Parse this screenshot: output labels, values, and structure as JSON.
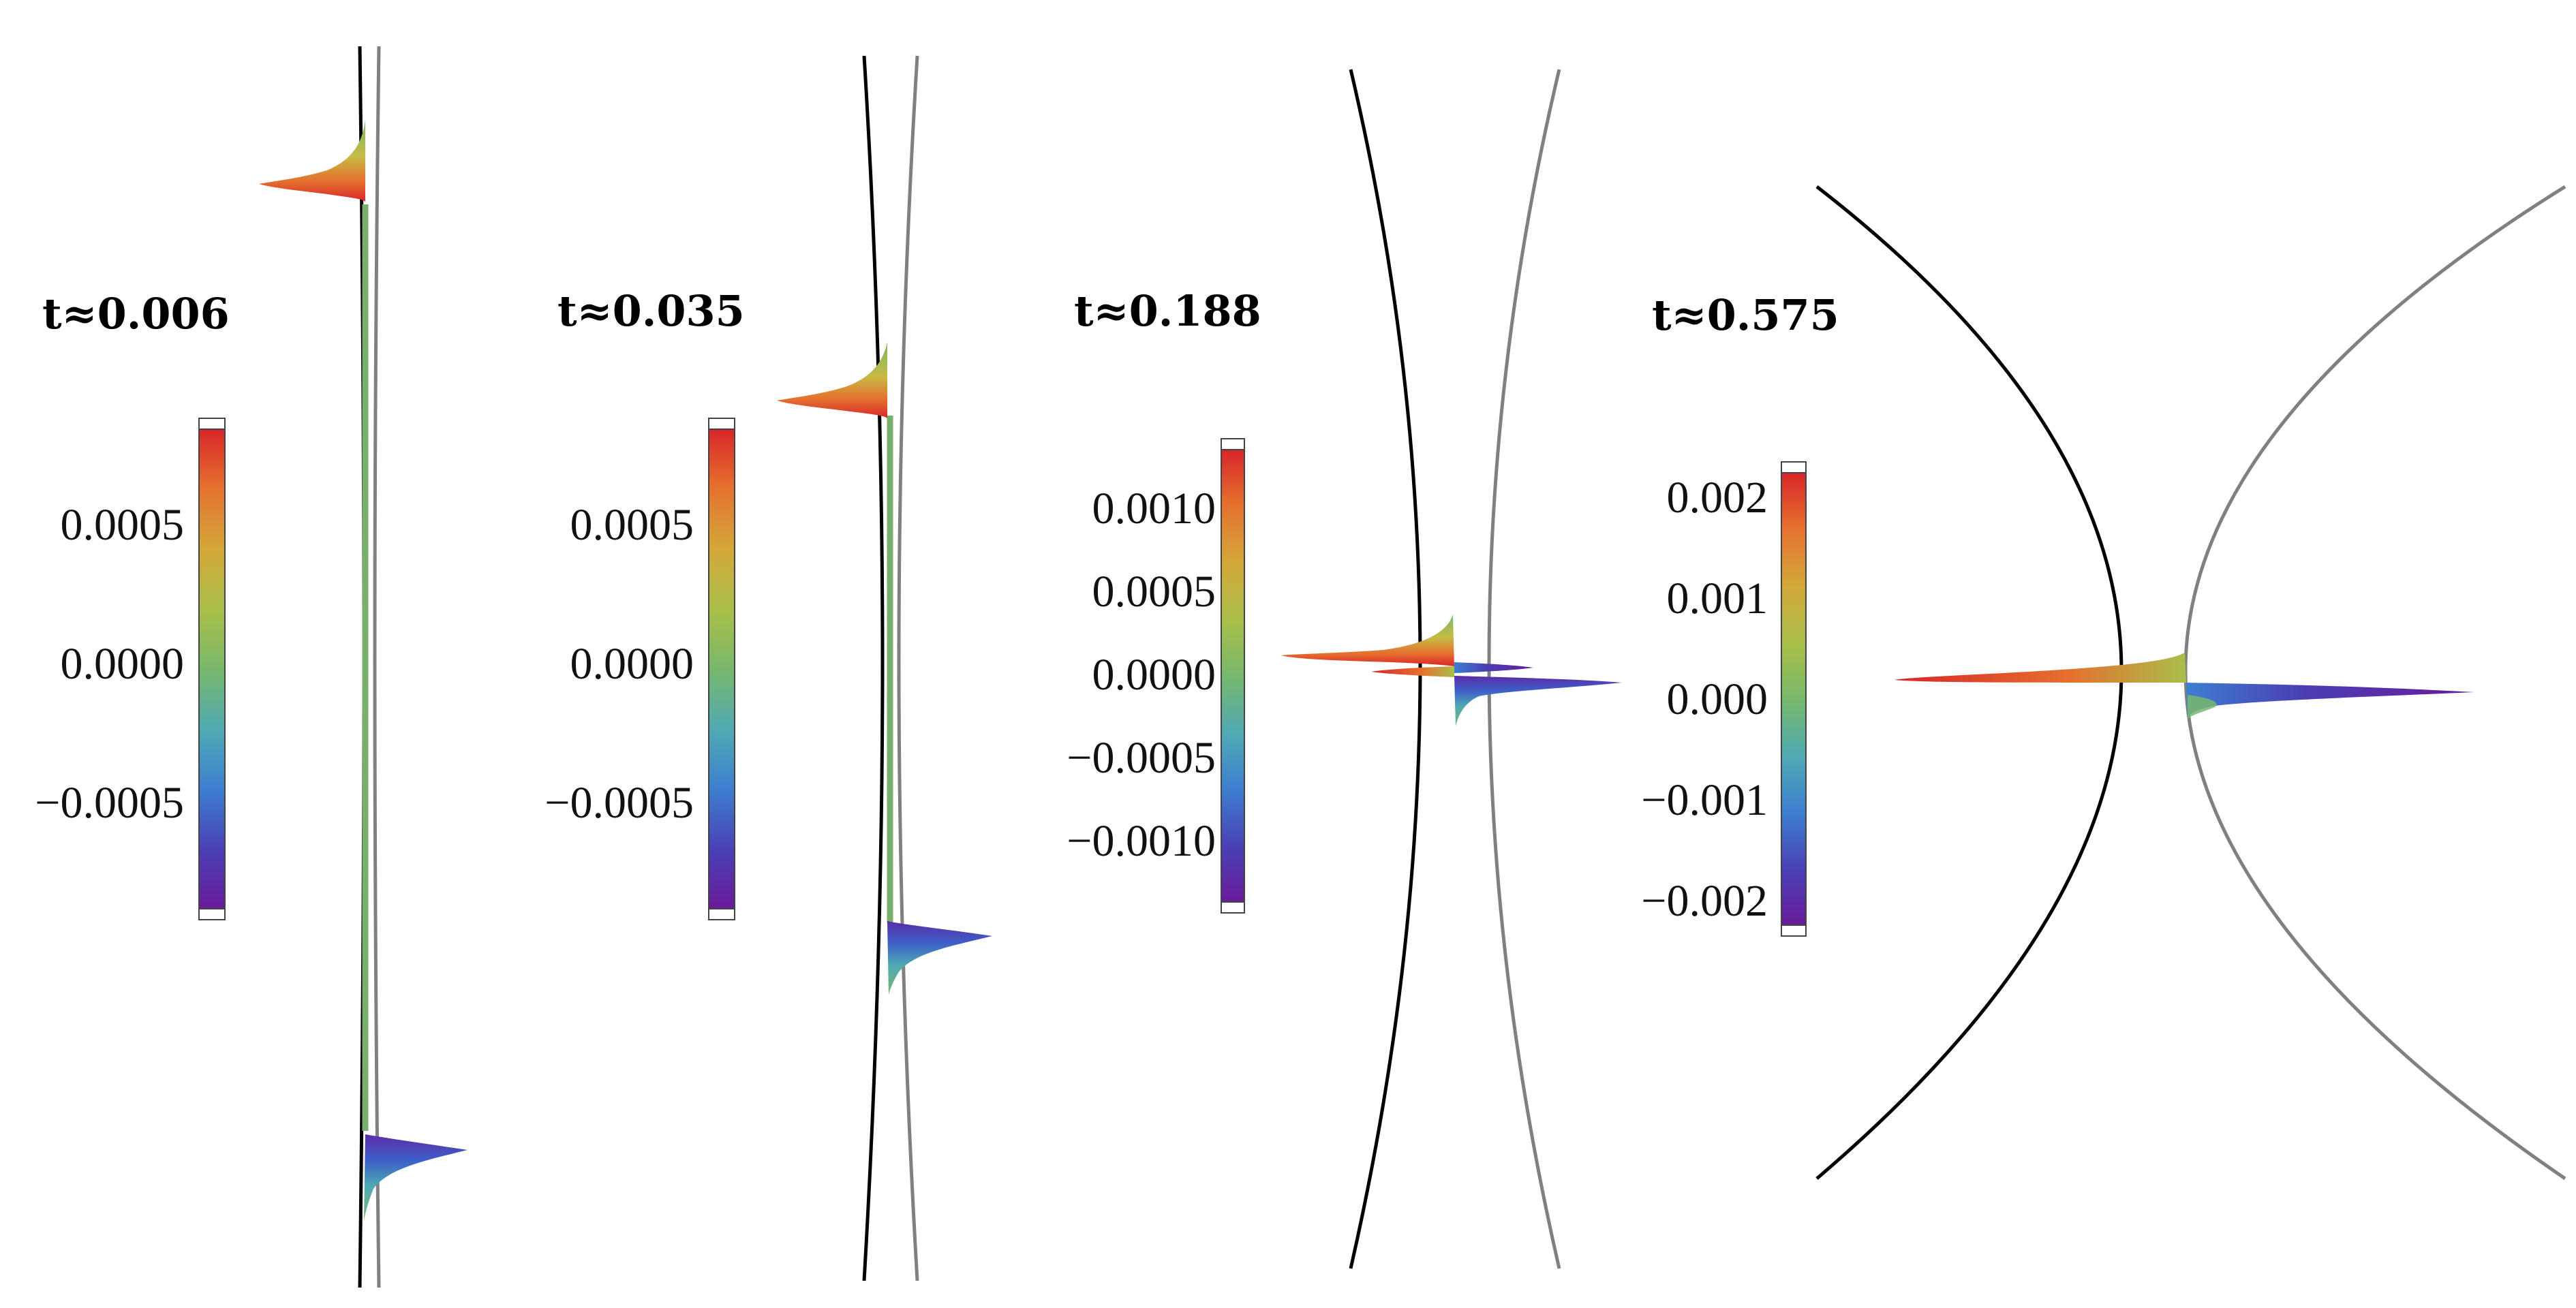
{
  "colors": {
    "curve_left": "#000000",
    "curve_right": "#808080",
    "membrane": "#79b06e",
    "scale": [
      "#6a1b9a",
      "#4a3fb5",
      "#3d7fd0",
      "#4fa9b4",
      "#78b86c",
      "#a9bf4a",
      "#d4a83a",
      "#e5702e",
      "#d8262a"
    ]
  },
  "panels": [
    {
      "title": "t≈0.006",
      "colorbar": {
        "ticks": [
          "0.0005",
          "0.0000",
          "−0.0005"
        ]
      }
    },
    {
      "title": "t≈0.035",
      "colorbar": {
        "ticks": [
          "0.0005",
          "0.0000",
          "−0.0005"
        ]
      }
    },
    {
      "title": "t≈0.188",
      "colorbar": {
        "ticks": [
          "0.0010",
          "0.0005",
          "0.0000",
          "−0.0005",
          "−0.0010"
        ]
      }
    },
    {
      "title": "t≈0.575",
      "colorbar": {
        "ticks": [
          "0.002",
          "0.001",
          "0.000",
          "−0.001",
          "−0.002"
        ]
      }
    }
  ]
}
